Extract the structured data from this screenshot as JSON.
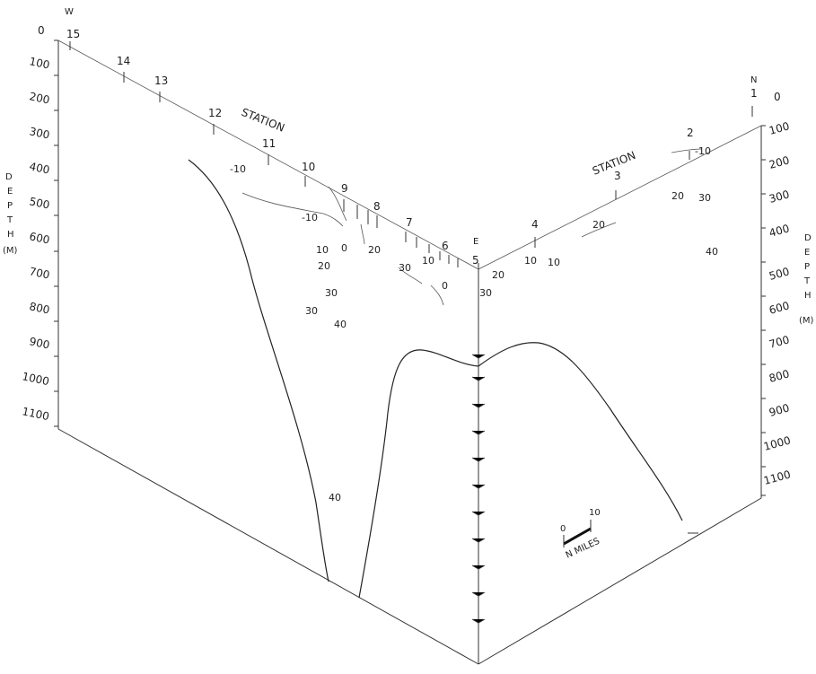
{
  "left_axis": {
    "direction": "W",
    "depth_ticks": [
      "0",
      "100",
      "200",
      "300",
      "400",
      "500",
      "600",
      "700",
      "800",
      "900",
      "1000",
      "1100"
    ],
    "title": [
      "D",
      "E",
      "P",
      "T",
      "H",
      "(M)"
    ]
  },
  "right_axis": {
    "direction": "N",
    "depth_ticks": [
      "0",
      "100",
      "200",
      "300",
      "400",
      "500",
      "600",
      "700",
      "800",
      "900",
      "1000",
      "1100"
    ],
    "title": [
      "D",
      "E",
      "P",
      "T",
      "H",
      "(M)"
    ]
  },
  "corner_label": "E",
  "left_section": {
    "station_title": "STATION",
    "stations": [
      "15",
      "14",
      "13",
      "12",
      "11",
      "10",
      "9",
      "8",
      "7",
      "6",
      "5"
    ]
  },
  "right_section": {
    "station_title": "STATION",
    "stations": [
      "4",
      "3",
      "2",
      "1"
    ]
  },
  "contour_labels_left": [
    "-10",
    "-10",
    "10",
    "0",
    "20",
    "20",
    "30",
    "30",
    "30",
    "40",
    "10",
    "0",
    "40"
  ],
  "contour_labels_right": [
    "-10",
    "20",
    "30",
    "10",
    "10",
    "20",
    "30",
    "20",
    "40"
  ],
  "scale": {
    "min": "0",
    "max": "10",
    "unit": "N MILES"
  }
}
